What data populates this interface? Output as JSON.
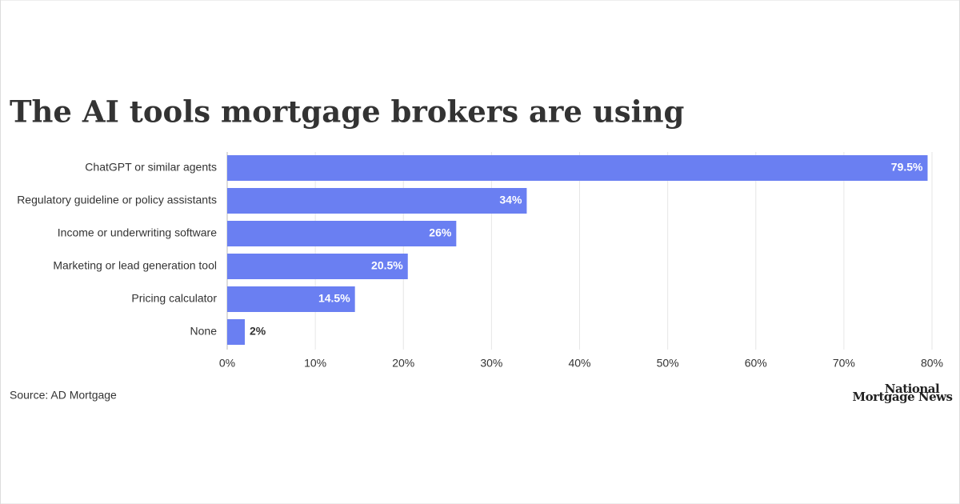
{
  "chart_data": {
    "type": "hbar",
    "title": "The AI tools mortgage brokers are using",
    "categories": [
      "ChatGPT or similar agents",
      "Regulatory guideline or policy assistants",
      "Income or underwriting software",
      "Marketing or lead generation tool",
      "Pricing calculator",
      "None"
    ],
    "values": [
      79.5,
      34,
      26,
      20.5,
      14.5,
      2
    ],
    "value_labels": [
      "79.5%",
      "34%",
      "26%",
      "20.5%",
      "14.5%",
      "2%"
    ],
    "color": "#6a7ff2",
    "xlim": [
      0,
      80
    ],
    "xticks": [
      {
        "value": 0,
        "label": "0%"
      },
      {
        "value": 10,
        "label": "10%"
      },
      {
        "value": 20,
        "label": "20%"
      },
      {
        "value": 30,
        "label": "30%"
      },
      {
        "value": 40,
        "label": "40%"
      },
      {
        "value": 50,
        "label": "50%"
      },
      {
        "value": 60,
        "label": "60%"
      },
      {
        "value": 70,
        "label": "70%"
      },
      {
        "value": 80,
        "label": "80%"
      }
    ],
    "grid": true,
    "source": "Source: AD Mortgage",
    "logo": [
      "National",
      "Mortgage News"
    ]
  }
}
